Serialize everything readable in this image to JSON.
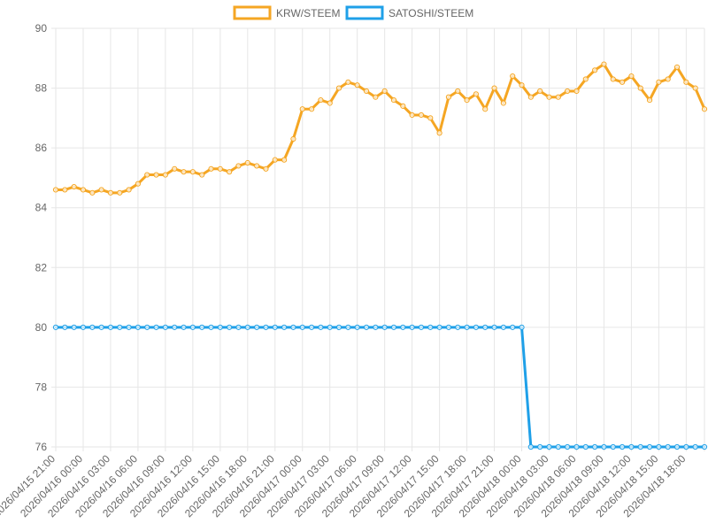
{
  "chart_data": {
    "type": "line",
    "title": "",
    "xlabel": "",
    "ylabel": "",
    "ylim": [
      76,
      90
    ],
    "yticks": [
      76,
      78,
      80,
      82,
      84,
      86,
      88,
      90
    ],
    "grid": true,
    "legend_position": "top-center",
    "x_tick_labels": [
      "2026/04/15 21:00",
      "2026/04/16 00:00",
      "2026/04/16 03:00",
      "2026/04/16 06:00",
      "2026/04/16 09:00",
      "2026/04/16 12:00",
      "2026/04/16 15:00",
      "2026/04/16 18:00",
      "2026/04/16 21:00",
      "2026/04/17 00:00",
      "2026/04/17 03:00",
      "2026/04/17 06:00",
      "2026/04/17 09:00",
      "2026/04/17 12:00",
      "2026/04/17 15:00",
      "2026/04/17 18:00",
      "2026/04/17 21:00",
      "2026/04/18 00:00",
      "2026/04/18 03:00",
      "2026/04/18 06:00",
      "2026/04/18 09:00",
      "2026/04/18 12:00",
      "2026/04/18 15:00",
      "2026/04/18 18:00"
    ],
    "series": [
      {
        "name": "KRW/STEEM",
        "color": "#f5a623",
        "values": [
          84.6,
          84.6,
          84.7,
          84.6,
          84.5,
          84.6,
          84.5,
          84.5,
          84.6,
          84.8,
          85.1,
          85.1,
          85.1,
          85.3,
          85.2,
          85.2,
          85.1,
          85.3,
          85.3,
          85.2,
          85.4,
          85.5,
          85.4,
          85.3,
          85.6,
          85.6,
          86.3,
          87.3,
          87.3,
          87.6,
          87.5,
          88.0,
          88.2,
          88.1,
          87.9,
          87.7,
          87.9,
          87.6,
          87.4,
          87.1,
          87.1,
          87.0,
          86.5,
          87.7,
          87.9,
          87.6,
          87.8,
          87.3,
          88.0,
          87.5,
          88.4,
          88.1,
          87.7,
          87.9,
          87.7,
          87.7,
          87.9,
          87.9,
          88.3,
          88.6,
          88.8,
          88.3,
          88.2,
          88.4,
          88.0,
          87.6,
          88.2,
          88.3,
          88.7,
          88.2,
          88.0,
          87.3
        ]
      },
      {
        "name": "SATOSHI/STEEM",
        "color": "#1fa0e8",
        "values": [
          80,
          80,
          80,
          80,
          80,
          80,
          80,
          80,
          80,
          80,
          80,
          80,
          80,
          80,
          80,
          80,
          80,
          80,
          80,
          80,
          80,
          80,
          80,
          80,
          80,
          80,
          80,
          80,
          80,
          80,
          80,
          80,
          80,
          80,
          80,
          80,
          80,
          80,
          80,
          80,
          80,
          80,
          80,
          80,
          80,
          80,
          80,
          80,
          80,
          80,
          80,
          80,
          76,
          76,
          76,
          76,
          76,
          76,
          76,
          76,
          76,
          76,
          76,
          76,
          76,
          76,
          76,
          76,
          76,
          76,
          76,
          76
        ]
      }
    ]
  }
}
